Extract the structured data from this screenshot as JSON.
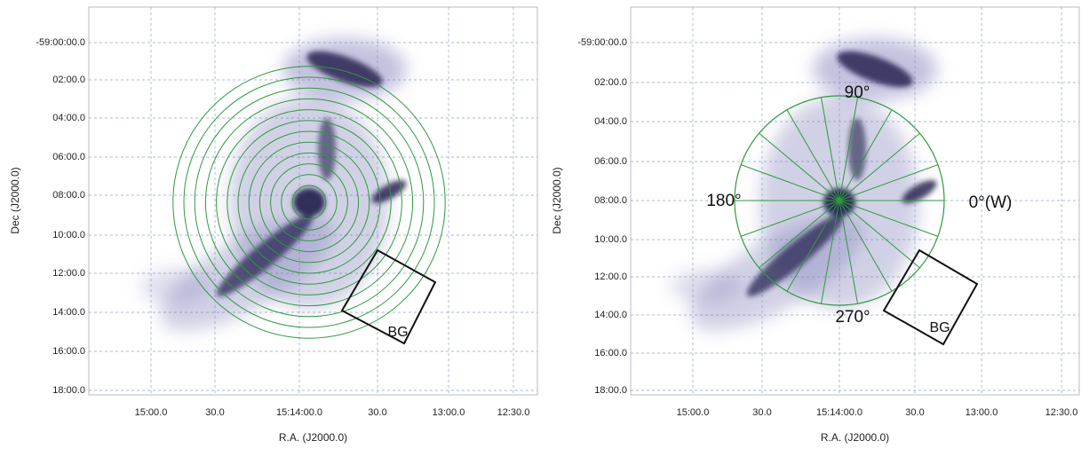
{
  "panels": [
    {
      "dec_ticks": [
        "-59:00:00.0",
        "02:00.0",
        "04:00.0",
        "06:00.0",
        "08:00.0",
        "10:00.0",
        "12:00.0",
        "14:00.0",
        "16:00.0",
        "18:00.0"
      ],
      "ra_ticks": [
        "15:00.0",
        "30.0",
        "15:14:00.0",
        "30.0",
        "13:00.0",
        "12:30.0"
      ],
      "x_label": "R.A. (J2000.0)",
      "y_label": "Dec (J2000.0)",
      "annotations": [
        "BG"
      ]
    },
    {
      "dec_ticks": [
        "-59:00:00.0",
        "02:00.0",
        "04:00.0",
        "06:00.0",
        "08:00.0",
        "10:00.0",
        "12:00.0",
        "14:00.0",
        "16:00.0",
        "18:00.0"
      ],
      "ra_ticks": [
        "15:00.0",
        "30.0",
        "15:14:00.0",
        "30.0",
        "13:00.0",
        "12:30.0"
      ],
      "x_label": "R.A. (J2000.0)",
      "y_label": "Dec (J2000.0)",
      "annotations": [
        "90°",
        "180°",
        "0°(W)",
        "270°",
        "BG"
      ]
    }
  ]
}
